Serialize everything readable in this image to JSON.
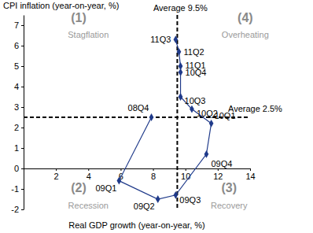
{
  "chart_data": {
    "type": "line",
    "x_label": "Real GDP growth (year-on-year, %)",
    "y_label": "CPI inflation (year-on-year, %)",
    "labels": [
      "08Q4",
      "09Q1",
      "09Q2",
      "09Q3",
      "09Q4",
      "10Q1",
      "10Q2",
      "10Q3",
      "10Q4",
      "11Q1",
      "11Q2",
      "11Q3"
    ],
    "x": [
      7.9,
      5.9,
      8.3,
      9.4,
      11.3,
      11.6,
      10.4,
      9.7,
      9.7,
      9.7,
      9.6,
      9.4
    ],
    "values": [
      2.5,
      -0.6,
      -1.5,
      -1.3,
      0.7,
      2.2,
      2.9,
      3.5,
      4.7,
      5.0,
      5.7,
      6.3
    ],
    "color": "#1f3a8a",
    "marker": "diamond",
    "grid": false,
    "xlim": [
      0,
      14
    ],
    "xticks": [
      2,
      4,
      6,
      8,
      10,
      12,
      14
    ],
    "ylim": [
      -2,
      7.5
    ],
    "yticks": [
      -2,
      -1,
      0,
      1,
      2,
      3,
      4,
      5,
      6,
      7
    ],
    "reference_lines": [
      {
        "axis": "x",
        "value": 9.5,
        "label": "Average 9.5%"
      },
      {
        "axis": "y",
        "value": 2.5,
        "label": "Average 2.5%"
      }
    ],
    "annotations": [
      {
        "text": "(1)",
        "x": 3.4,
        "y": 7.3
      },
      {
        "text": "Stagflation",
        "x": 4.0,
        "y": 6.5
      },
      {
        "text": "(4)",
        "x": 13.7,
        "y": 7.3
      },
      {
        "text": "Overheating",
        "x": 13.7,
        "y": 6.5
      },
      {
        "text": "(2)",
        "x": 3.4,
        "y": -1.0
      },
      {
        "text": "Recession",
        "x": 4.0,
        "y": -1.85
      },
      {
        "text": "(3)",
        "x": 12.7,
        "y": -1.0
      },
      {
        "text": "Recovery",
        "x": 12.7,
        "y": -1.85
      }
    ]
  }
}
